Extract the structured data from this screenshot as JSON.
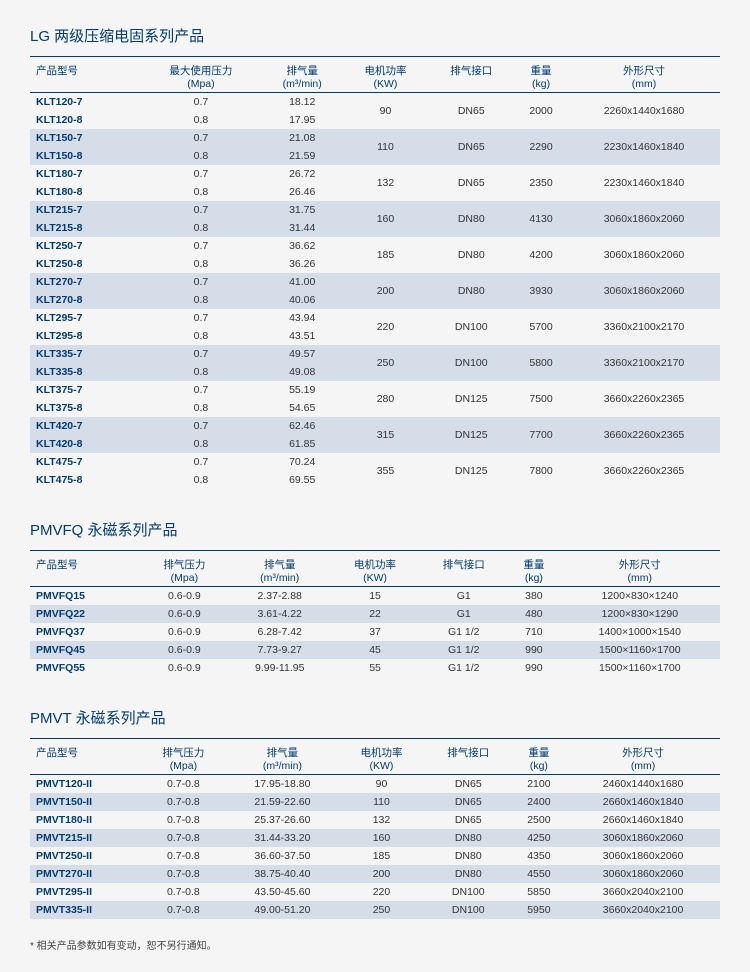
{
  "colors": {
    "brand": "#003b71",
    "altRow": "#d5dde8",
    "bg": "#f5f5f5"
  },
  "headers": {
    "model": "产品型号",
    "maxPressure": "最大使用压力",
    "maxPressureUnit": "(Mpa)",
    "exhaustPressure": "排气压力",
    "exhaustPressureUnit": "(Mpa)",
    "airVol": "排气量",
    "airVolUnit": "(m³/min)",
    "power": "电机功率",
    "powerUnit": "(KW)",
    "port": "排气接口",
    "weight": "重量",
    "weightUnit": "(kg)",
    "dim": "外形尺寸",
    "dimUnit": "(mm)"
  },
  "section1": {
    "title": "LG 两级压缩电固系列产品",
    "groups": [
      {
        "rows": [
          {
            "m": "KLT120-7",
            "p": "0.7",
            "v": "18.12"
          },
          {
            "m": "KLT120-8",
            "p": "0.8",
            "v": "17.95"
          }
        ],
        "kw": "90",
        "port": "DN65",
        "wt": "2000",
        "dim": "2260x1440x1680",
        "alt": false
      },
      {
        "rows": [
          {
            "m": "KLT150-7",
            "p": "0.7",
            "v": "21.08"
          },
          {
            "m": "KLT150-8",
            "p": "0.8",
            "v": "21.59"
          }
        ],
        "kw": "110",
        "port": "DN65",
        "wt": "2290",
        "dim": "2230x1460x1840",
        "alt": true
      },
      {
        "rows": [
          {
            "m": "KLT180-7",
            "p": "0.7",
            "v": "26.72"
          },
          {
            "m": "KLT180-8",
            "p": "0.8",
            "v": "26.46"
          }
        ],
        "kw": "132",
        "port": "DN65",
        "wt": "2350",
        "dim": "2230x1460x1840",
        "alt": false
      },
      {
        "rows": [
          {
            "m": "KLT215-7",
            "p": "0.7",
            "v": "31.75"
          },
          {
            "m": "KLT215-8",
            "p": "0.8",
            "v": "31.44"
          }
        ],
        "kw": "160",
        "port": "DN80",
        "wt": "4130",
        "dim": "3060x1860x2060",
        "alt": true
      },
      {
        "rows": [
          {
            "m": "KLT250-7",
            "p": "0.7",
            "v": "36.62"
          },
          {
            "m": "KLT250-8",
            "p": "0.8",
            "v": "36.26"
          }
        ],
        "kw": "185",
        "port": "DN80",
        "wt": "4200",
        "dim": "3060x1860x2060",
        "alt": false
      },
      {
        "rows": [
          {
            "m": "KLT270-7",
            "p": "0.7",
            "v": "41.00"
          },
          {
            "m": "KLT270-8",
            "p": "0.8",
            "v": "40.06"
          }
        ],
        "kw": "200",
        "port": "DN80",
        "wt": "3930",
        "dim": "3060x1860x2060",
        "alt": true
      },
      {
        "rows": [
          {
            "m": "KLT295-7",
            "p": "0.7",
            "v": "43.94"
          },
          {
            "m": "KLT295-8",
            "p": "0.8",
            "v": "43.51"
          }
        ],
        "kw": "220",
        "port": "DN100",
        "wt": "5700",
        "dim": "3360x2100x2170",
        "alt": false
      },
      {
        "rows": [
          {
            "m": "KLT335-7",
            "p": "0.7",
            "v": "49.57"
          },
          {
            "m": "KLT335-8",
            "p": "0.8",
            "v": "49.08"
          }
        ],
        "kw": "250",
        "port": "DN100",
        "wt": "5800",
        "dim": "3360x2100x2170",
        "alt": true
      },
      {
        "rows": [
          {
            "m": "KLT375-7",
            "p": "0.7",
            "v": "55.19"
          },
          {
            "m": "KLT375-8",
            "p": "0.8",
            "v": "54.65"
          }
        ],
        "kw": "280",
        "port": "DN125",
        "wt": "7500",
        "dim": "3660x2260x2365",
        "alt": false
      },
      {
        "rows": [
          {
            "m": "KLT420-7",
            "p": "0.7",
            "v": "62.46"
          },
          {
            "m": "KLT420-8",
            "p": "0.8",
            "v": "61.85"
          }
        ],
        "kw": "315",
        "port": "DN125",
        "wt": "7700",
        "dim": "3660x2260x2365",
        "alt": true
      },
      {
        "rows": [
          {
            "m": "KLT475-7",
            "p": "0.7",
            "v": "70.24"
          },
          {
            "m": "KLT475-8",
            "p": "0.8",
            "v": "69.55"
          }
        ],
        "kw": "355",
        "port": "DN125",
        "wt": "7800",
        "dim": "3660x2260x2365",
        "alt": false
      }
    ]
  },
  "section2": {
    "title": "PMVFQ 永磁系列产品",
    "rows": [
      {
        "m": "PMVFQ15",
        "p": "0.6-0.9",
        "v": "2.37-2.88",
        "kw": "15",
        "port": "G1",
        "wt": "380",
        "dim": "1200×830×1240",
        "alt": false
      },
      {
        "m": "PMVFQ22",
        "p": "0.6-0.9",
        "v": "3.61-4.22",
        "kw": "22",
        "port": "G1",
        "wt": "480",
        "dim": "1200×830×1290",
        "alt": true
      },
      {
        "m": "PMVFQ37",
        "p": "0.6-0.9",
        "v": "6.28-7.42",
        "kw": "37",
        "port": "G1 1/2",
        "wt": "710",
        "dim": "1400×1000×1540",
        "alt": false
      },
      {
        "m": "PMVFQ45",
        "p": "0.6-0.9",
        "v": "7.73-9.27",
        "kw": "45",
        "port": "G1 1/2",
        "wt": "990",
        "dim": "1500×1160×1700",
        "alt": true
      },
      {
        "m": "PMVFQ55",
        "p": "0.6-0.9",
        "v": "9.99-11.95",
        "kw": "55",
        "port": "G1 1/2",
        "wt": "990",
        "dim": "1500×1160×1700",
        "alt": false
      }
    ]
  },
  "section3": {
    "title": "PMVT 永磁系列产品",
    "rows": [
      {
        "m": "PMVT120-II",
        "p": "0.7-0.8",
        "v": "17.95-18.80",
        "kw": "90",
        "port": "DN65",
        "wt": "2100",
        "dim": "2460x1440x1680",
        "alt": false
      },
      {
        "m": "PMVT150-II",
        "p": "0.7-0.8",
        "v": "21.59-22.60",
        "kw": "110",
        "port": "DN65",
        "wt": "2400",
        "dim": "2660x1460x1840",
        "alt": true
      },
      {
        "m": "PMVT180-II",
        "p": "0.7-0.8",
        "v": "25.37-26.60",
        "kw": "132",
        "port": "DN65",
        "wt": "2500",
        "dim": "2660x1460x1840",
        "alt": false
      },
      {
        "m": "PMVT215-II",
        "p": "0.7-0.8",
        "v": "31.44-33.20",
        "kw": "160",
        "port": "DN80",
        "wt": "4250",
        "dim": "3060x1860x2060",
        "alt": true
      },
      {
        "m": "PMVT250-II",
        "p": "0.7-0.8",
        "v": "36.60-37.50",
        "kw": "185",
        "port": "DN80",
        "wt": "4350",
        "dim": "3060x1860x2060",
        "alt": false
      },
      {
        "m": "PMVT270-II",
        "p": "0.7-0.8",
        "v": "38.75-40.40",
        "kw": "200",
        "port": "DN80",
        "wt": "4550",
        "dim": "3060x1860x2060",
        "alt": true
      },
      {
        "m": "PMVT295-II",
        "p": "0.7-0.8",
        "v": "43.50-45.60",
        "kw": "220",
        "port": "DN100",
        "wt": "5850",
        "dim": "3660x2040x2100",
        "alt": false
      },
      {
        "m": "PMVT335-II",
        "p": "0.7-0.8",
        "v": "49.00-51.20",
        "kw": "250",
        "port": "DN100",
        "wt": "5950",
        "dim": "3660x2040x2100",
        "alt": true
      }
    ]
  },
  "footnote": "* 相关产品参数如有变动，恕不另行通知。"
}
